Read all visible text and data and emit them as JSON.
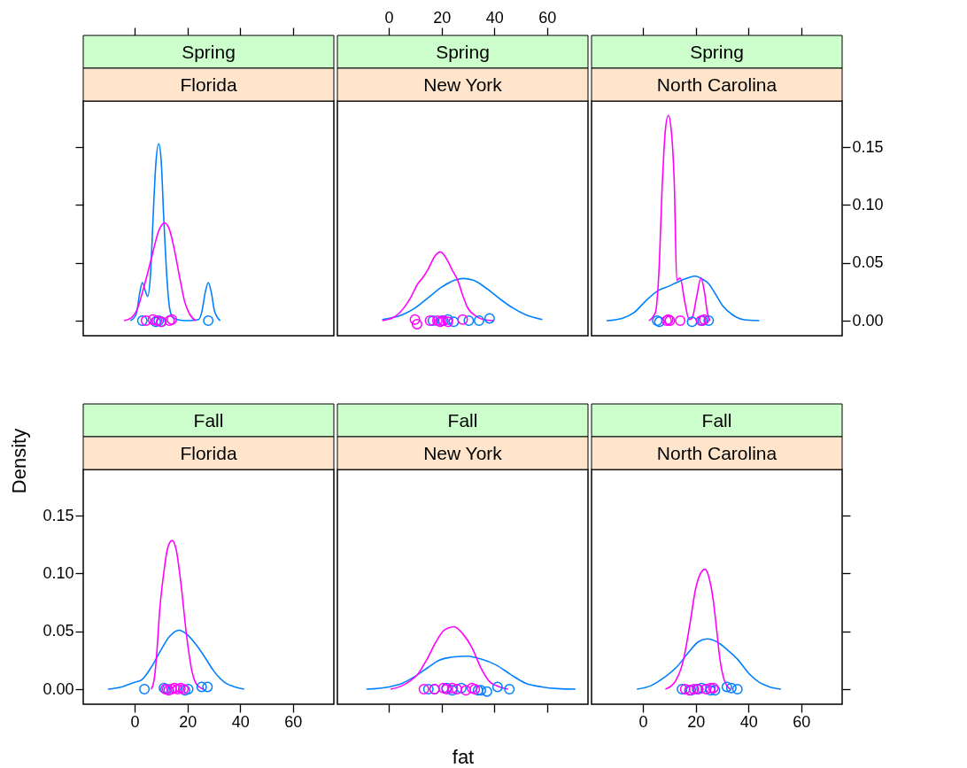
{
  "chart_data": [
    {
      "type": "line",
      "title": "Spring",
      "subtitle": "Florida",
      "xlim": [
        -19.5,
        75.5
      ],
      "ylim": [
        -0.013,
        0.19
      ],
      "xticks": [
        {
          "value": 0,
          "label": null
        },
        {
          "value": 20,
          "label": null
        },
        {
          "value": 40,
          "label": null
        },
        {
          "value": 60,
          "label": null
        }
      ],
      "yticks": [
        {
          "value": 0,
          "label": null
        },
        {
          "value": 0.05,
          "label": null
        },
        {
          "value": 0.1,
          "label": null
        },
        {
          "value": 0.15,
          "label": null
        }
      ],
      "tick_labels": false,
      "line_style": "solid",
      "series": [
        {
          "type": "line",
          "color": "#0080ff",
          "x": [
            -1.6,
            0.5,
            2,
            2.9,
            4,
            4.9,
            6,
            7,
            8,
            9.1,
            10,
            11,
            12,
            13,
            14.1,
            16,
            20,
            24.2,
            25.5,
            26.8,
            27.9,
            29,
            30.3,
            32.4
          ],
          "values": [
            0,
            0.005,
            0.025,
            0.033,
            0.026,
            0.021,
            0.04,
            0.09,
            0.135,
            0.153,
            0.14,
            0.09,
            0.045,
            0.015,
            0.004,
            0.001,
            0,
            0.001,
            0.008,
            0.025,
            0.033,
            0.025,
            0.008,
            0
          ]
        },
        {
          "type": "line",
          "color": "#ff00ff",
          "x": [
            -4,
            -1,
            1,
            3,
            5,
            7,
            9,
            11.3,
            13,
            15,
            17,
            19,
            21,
            23.1
          ],
          "values": [
            0,
            0.003,
            0.01,
            0.025,
            0.042,
            0.06,
            0.077,
            0.0845,
            0.08,
            0.062,
            0.038,
            0.016,
            0.005,
            0
          ]
        },
        {
          "type": "scatter",
          "marker": "circle",
          "color": "#0080ff",
          "x": [
            2.9,
            8,
            9.1,
            10.2,
            27.9
          ],
          "values": [
            0,
            -0.001,
            0,
            -0.001,
            0
          ]
        },
        {
          "type": "scatter",
          "marker": "circle",
          "color": "#ff00ff",
          "x": [
            4.3,
            6.9,
            8.4,
            10,
            13.2,
            14.1
          ],
          "values": [
            0,
            0.001,
            0,
            -0.001,
            0,
            0.001
          ]
        }
      ]
    },
    {
      "type": "line",
      "title": "Spring",
      "subtitle": "New York",
      "xlim": [
        -19.5,
        75.5
      ],
      "ylim": [
        -0.013,
        0.19
      ],
      "xticks": [
        0,
        20,
        40,
        60
      ],
      "tick_labels": "x",
      "line_style": "solid",
      "series": [
        {
          "type": "line",
          "color": "#0080ff",
          "x": [
            -2.5,
            5,
            10,
            15,
            20,
            25,
            28,
            32,
            37,
            42,
            47,
            52,
            58.2
          ],
          "values": [
            0.001,
            0.005,
            0.011,
            0.02,
            0.029,
            0.035,
            0.0365,
            0.035,
            0.028,
            0.019,
            0.011,
            0.005,
            0.001
          ]
        },
        {
          "type": "line",
          "color": "#ff00ff",
          "x": [
            -2.5,
            2.6,
            6,
            8.3,
            11,
            12.8,
            15,
            17.5,
            19.6,
            22,
            24,
            26.1,
            28,
            29.7,
            33,
            36,
            39.9
          ],
          "values": [
            0,
            0.004,
            0.012,
            0.02,
            0.032,
            0.037,
            0.045,
            0.056,
            0.0595,
            0.053,
            0.044,
            0.035,
            0.022,
            0.012,
            0.004,
            0.001,
            0
          ]
        },
        {
          "type": "scatter",
          "marker": "circle",
          "color": "#0080ff",
          "x": [
            16.7,
            20.1,
            22.4,
            24.6,
            30.3,
            34.2,
            38.2
          ],
          "values": [
            0,
            0,
            0.001,
            -0.001,
            0,
            0,
            0.002
          ]
        },
        {
          "type": "scatter",
          "marker": "circle",
          "color": "#ff00ff",
          "x": [
            9.9,
            10.7,
            15.6,
            18.4,
            19.5,
            20.7,
            22.4,
            28
          ],
          "values": [
            0.001,
            -0.003,
            0,
            0,
            -0.001,
            0,
            -0.001,
            0.001
          ]
        }
      ]
    },
    {
      "type": "line",
      "title": "Spring",
      "subtitle": "North Carolina",
      "xlim": [
        -19.5,
        75.5
      ],
      "ylim": [
        -0.013,
        0.19
      ],
      "xticks": [
        {
          "value": 0,
          "label": null
        },
        {
          "value": 20,
          "label": null
        },
        {
          "value": 40,
          "label": null
        },
        {
          "value": 60,
          "label": null
        }
      ],
      "yticks": [
        {
          "value": 0,
          "label": "0.00"
        },
        {
          "value": 0.05,
          "label": "0.05"
        },
        {
          "value": 0.1,
          "label": "0.10"
        },
        {
          "value": 0.15,
          "label": "0.15"
        }
      ],
      "tick_labels": "y",
      "line_style": "solid",
      "series": [
        {
          "type": "line",
          "color": "#0080ff",
          "x": [
            -13.8,
            -8,
            -3.4,
            1,
            5.7,
            10,
            13.6,
            17,
            19.8,
            22.5,
            24.9,
            27.5,
            30.5,
            34,
            38,
            44.1
          ],
          "values": [
            0,
            0.002,
            0.007,
            0.017,
            0.026,
            0.03,
            0.034,
            0.037,
            0.0385,
            0.036,
            0.032,
            0.023,
            0.012,
            0.005,
            0.001,
            0
          ]
        },
        {
          "type": "line",
          "color": "#ff00ff",
          "x": [
            2.3,
            4.7,
            6,
            7.3,
            8.5,
            9.6,
            10.7,
            11.9,
            12.8,
            14.1,
            15.8,
            17.5,
            18.6,
            20.3,
            22,
            23.3,
            24.4,
            25.4
          ],
          "values": [
            0,
            0.007,
            0.04,
            0.117,
            0.165,
            0.1775,
            0.165,
            0.117,
            0.035,
            0.037,
            0.017,
            0.001,
            0.002,
            0.02,
            0.037,
            0.025,
            0.007,
            0
          ]
        },
        {
          "type": "scatter",
          "marker": "circle",
          "color": "#0080ff",
          "x": [
            5.4,
            6.2,
            18.6,
            22.6,
            24.9
          ],
          "values": [
            0,
            -0.001,
            -0.001,
            0,
            0
          ]
        },
        {
          "type": "scatter",
          "marker": "circle",
          "color": "#ff00ff",
          "x": [
            9,
            9.6,
            10.2,
            14.1,
            22,
            23.2
          ],
          "values": [
            0,
            0.001,
            0,
            0,
            0,
            0.001
          ]
        }
      ]
    },
    {
      "type": "line",
      "title": "Fall",
      "subtitle": "Florida",
      "ylabel": "Density",
      "xlim": [
        -19.5,
        75.5
      ],
      "ylim": [
        -0.013,
        0.19
      ],
      "xticks": [
        0,
        20,
        40,
        60
      ],
      "yticks": [
        {
          "value": 0,
          "label": "0.00"
        },
        {
          "value": 0.05,
          "label": "0.05"
        },
        {
          "value": 0.1,
          "label": "0.10"
        },
        {
          "value": 0.15,
          "label": "0.15"
        }
      ],
      "line_style": "solid",
      "series": [
        {
          "type": "line",
          "color": "#0080ff",
          "x": [
            -10.1,
            -5,
            0,
            2.6,
            6,
            10,
            13,
            16.8,
            20,
            23.1,
            26.5,
            29.9,
            34,
            38,
            41.5
          ],
          "values": [
            0,
            0.002,
            0.006,
            0.008,
            0.018,
            0.034,
            0.045,
            0.051,
            0.047,
            0.039,
            0.028,
            0.016,
            0.006,
            0.002,
            0
          ]
        },
        {
          "type": "line",
          "color": "#ff00ff",
          "x": [
            6.3,
            7.5,
            8.5,
            9.4,
            11,
            12.5,
            14.2,
            15.8,
            17.5,
            19.7,
            21.5,
            23.5,
            25.9
          ],
          "values": [
            0,
            0.01,
            0.035,
            0.066,
            0.1,
            0.122,
            0.1286,
            0.12,
            0.092,
            0.046,
            0.018,
            0.004,
            0
          ]
        },
        {
          "type": "scatter",
          "marker": "circle",
          "color": "#0080ff",
          "x": [
            3.7,
            11.1,
            12.3,
            19.1,
            20.3,
            25.4,
            27.6
          ],
          "values": [
            0,
            0.001,
            0,
            -0.001,
            0,
            0.002,
            0.002
          ]
        },
        {
          "type": "scatter",
          "marker": "circle",
          "color": "#ff00ff",
          "x": [
            11.7,
            12.9,
            14,
            15.1,
            16.3,
            17.4,
            18.5
          ],
          "values": [
            0,
            -0.001,
            0,
            0.001,
            0,
            0.001,
            0
          ]
        }
      ]
    },
    {
      "type": "line",
      "title": "Fall",
      "subtitle": "New York",
      "xlabel": "fat",
      "xlim": [
        -19.5,
        75.5
      ],
      "ylim": [
        -0.013,
        0.19
      ],
      "xticks": [
        {
          "value": 0,
          "label": null
        },
        {
          "value": 20,
          "label": null
        },
        {
          "value": 40,
          "label": null
        },
        {
          "value": 60,
          "label": null
        }
      ],
      "tick_labels": false,
      "line_style": "solid",
      "series": [
        {
          "type": "line",
          "color": "#0080ff",
          "x": [
            -8.5,
            0,
            5,
            9.9,
            15,
            19,
            25,
            29.8,
            35,
            40.6,
            46,
            52,
            58,
            64,
            70.8
          ],
          "values": [
            0,
            0.002,
            0.005,
            0.011,
            0.019,
            0.025,
            0.028,
            0.0286,
            0.026,
            0.021,
            0.013,
            0.005,
            0.002,
            0.0005,
            0
          ]
        },
        {
          "type": "line",
          "color": "#ff00ff",
          "x": [
            0.6,
            5,
            8,
            11,
            14.5,
            17.9,
            21,
            24.7,
            28,
            31.5,
            35,
            38.4,
            42,
            45.2
          ],
          "values": [
            0,
            0.003,
            0.007,
            0.013,
            0.026,
            0.041,
            0.051,
            0.054,
            0.048,
            0.036,
            0.018,
            0.006,
            0.002,
            0
          ]
        },
        {
          "type": "scatter",
          "marker": "circle",
          "color": "#0080ff",
          "x": [
            15,
            17.3,
            21.9,
            24.1,
            27.5,
            33.8,
            34.9,
            37.2,
            41.2,
            45.7
          ],
          "values": [
            0,
            0,
            0.001,
            -0.001,
            0.001,
            -0.001,
            -0.001,
            -0.002,
            0.002,
            0
          ]
        },
        {
          "type": "scatter",
          "marker": "circle",
          "color": "#ff00ff",
          "x": [
            13.3,
            17.3,
            20.7,
            21.9,
            24.1,
            25.8,
            29.2,
            31.5,
            32.6
          ],
          "values": [
            0,
            0,
            0.001,
            0,
            0.001,
            0,
            -0.001,
            0.001,
            0
          ]
        }
      ]
    },
    {
      "type": "line",
      "title": "Fall",
      "subtitle": "North Carolina",
      "xlim": [
        -19.5,
        75.5
      ],
      "ylim": [
        -0.013,
        0.19
      ],
      "xticks": [
        0,
        20,
        40,
        60
      ],
      "yticks": [
        {
          "value": 0,
          "label": null
        },
        {
          "value": 0.05,
          "label": null
        },
        {
          "value": 0.1,
          "label": null
        },
        {
          "value": 0.15,
          "label": null
        }
      ],
      "tick_labels": "x",
      "line_style": "solid",
      "series": [
        {
          "type": "line",
          "color": "#0080ff",
          "x": [
            -2.3,
            3,
            8,
            13.1,
            17,
            21,
            24.4,
            28,
            32,
            35.8,
            40,
            44,
            48,
            52.3
          ],
          "values": [
            0,
            0.003,
            0.01,
            0.02,
            0.031,
            0.041,
            0.0435,
            0.041,
            0.034,
            0.026,
            0.014,
            0.006,
            0.002,
            0
          ]
        },
        {
          "type": "line",
          "color": "#ff00ff",
          "x": [
            8.5,
            12,
            15.4,
            17.7,
            19.9,
            21.8,
            23.6,
            25.2,
            26.7,
            28,
            29,
            30.8,
            33
          ],
          "values": [
            0,
            0.006,
            0.026,
            0.055,
            0.086,
            0.1,
            0.1037,
            0.095,
            0.076,
            0.05,
            0.029,
            0.008,
            0
          ]
        },
        {
          "type": "scatter",
          "marker": "circle",
          "color": "#0080ff",
          "x": [
            14.8,
            18.2,
            20.5,
            22.2,
            25.6,
            27.3,
            31.8,
            33.5,
            35.8
          ],
          "values": [
            0,
            -0.001,
            0,
            0.001,
            -0.001,
            -0.001,
            0.002,
            0.001,
            0
          ]
        },
        {
          "type": "scatter",
          "marker": "circle",
          "color": "#ff00ff",
          "x": [
            16,
            17.6,
            19.3,
            21,
            23.9,
            25.6,
            26.7
          ],
          "values": [
            0,
            -0.001,
            0,
            0,
            0,
            0.001,
            0.001
          ]
        }
      ]
    }
  ]
}
